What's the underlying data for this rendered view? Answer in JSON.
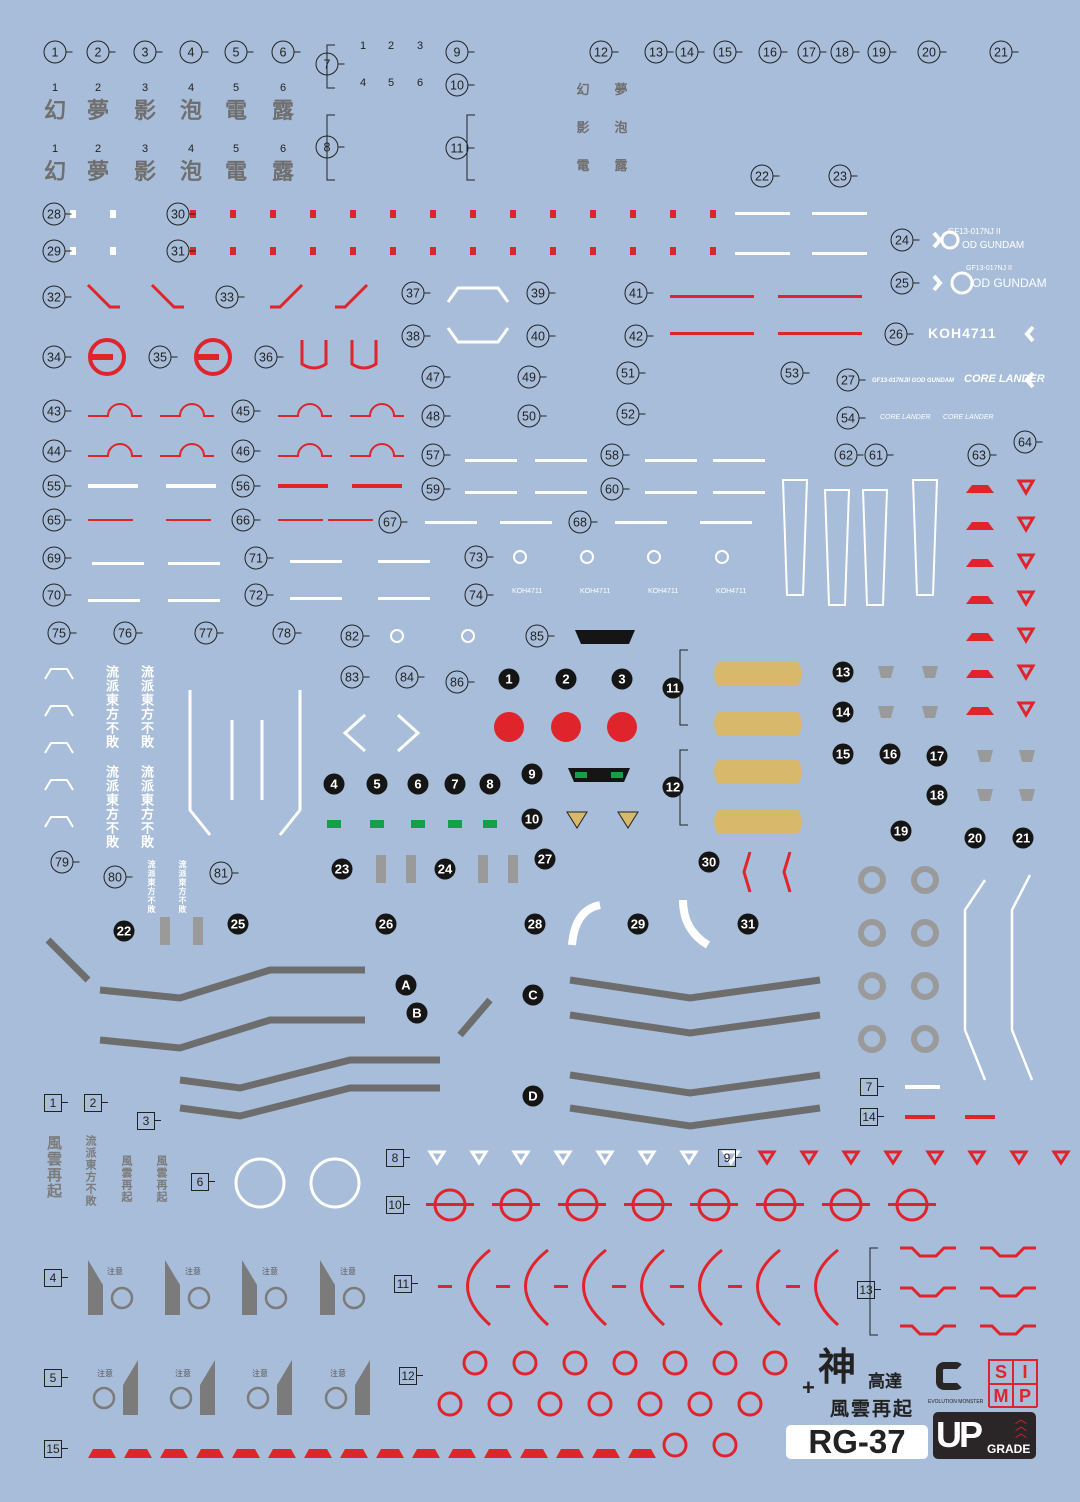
{
  "sheet": {
    "background": "#a8bdd9",
    "accent_red": "#e0242b",
    "decal_grey": "#7b7b7b",
    "decal_white": "#ffffff",
    "decal_tan": "#d8b86a",
    "decal_green": "#14a04a"
  },
  "outlined_labels": [
    "1",
    "2",
    "3",
    "4",
    "5",
    "6",
    "7",
    "8",
    "9",
    "10",
    "11",
    "12",
    "13",
    "14",
    "15",
    "16",
    "17",
    "18",
    "19",
    "20",
    "21",
    "22",
    "23",
    "24",
    "25",
    "26",
    "27",
    "28",
    "29",
    "30",
    "31",
    "32",
    "33",
    "34",
    "35",
    "36",
    "37",
    "38",
    "39",
    "40",
    "41",
    "42",
    "43",
    "44",
    "45",
    "46",
    "47",
    "48",
    "49",
    "50",
    "51",
    "52",
    "53",
    "54",
    "55",
    "56",
    "57",
    "58",
    "59",
    "60",
    "61",
    "62",
    "63",
    "64",
    "65",
    "66",
    "67",
    "68",
    "69",
    "70",
    "71",
    "72",
    "73",
    "74",
    "75",
    "76",
    "77",
    "78",
    "79",
    "80",
    "81",
    "82",
    "83",
    "84",
    "85",
    "86"
  ],
  "filled_labels": [
    "1",
    "2",
    "3",
    "4",
    "5",
    "6",
    "7",
    "8",
    "9",
    "10",
    "11",
    "12",
    "13",
    "14",
    "15",
    "16",
    "17",
    "18",
    "19",
    "20",
    "21",
    "22",
    "23",
    "24",
    "25",
    "26",
    "27",
    "28",
    "29",
    "30",
    "31",
    "A",
    "B",
    "C",
    "D"
  ],
  "square_labels": [
    "1",
    "2",
    "3",
    "4",
    "5",
    "6",
    "7",
    "8",
    "9",
    "10",
    "11",
    "12",
    "13",
    "14",
    "15"
  ],
  "kanji_row": {
    "numbers": [
      "1",
      "2",
      "3",
      "4",
      "5",
      "6"
    ],
    "chars": [
      "幻",
      "夢",
      "影",
      "泡",
      "電",
      "露"
    ]
  },
  "group7_numbers": [
    "1",
    "2",
    "3",
    "4",
    "5",
    "6"
  ],
  "markings": {
    "gf_code": "GF13-017NJ II",
    "god_gundam": "OD GUNDAM",
    "koh": "KOH4711",
    "core_lander_prefix": "GF13-017NJII GOD GUNDAM",
    "core_lander": "CORE LANDER",
    "caution_small": "注意"
  },
  "slogans": {
    "fuun": "風雲再起",
    "ryuha": "流派東方不敗",
    "shin": "神",
    "koutatsu": "高達",
    "plus": "+"
  },
  "logos": {
    "model_code": "RG-37",
    "upgrade_big": "UP",
    "upgrade_small": "GRADE",
    "evolution_monster": "EVOLUTION MONSTER",
    "simp": [
      "S",
      "I",
      "M",
      "P"
    ]
  }
}
